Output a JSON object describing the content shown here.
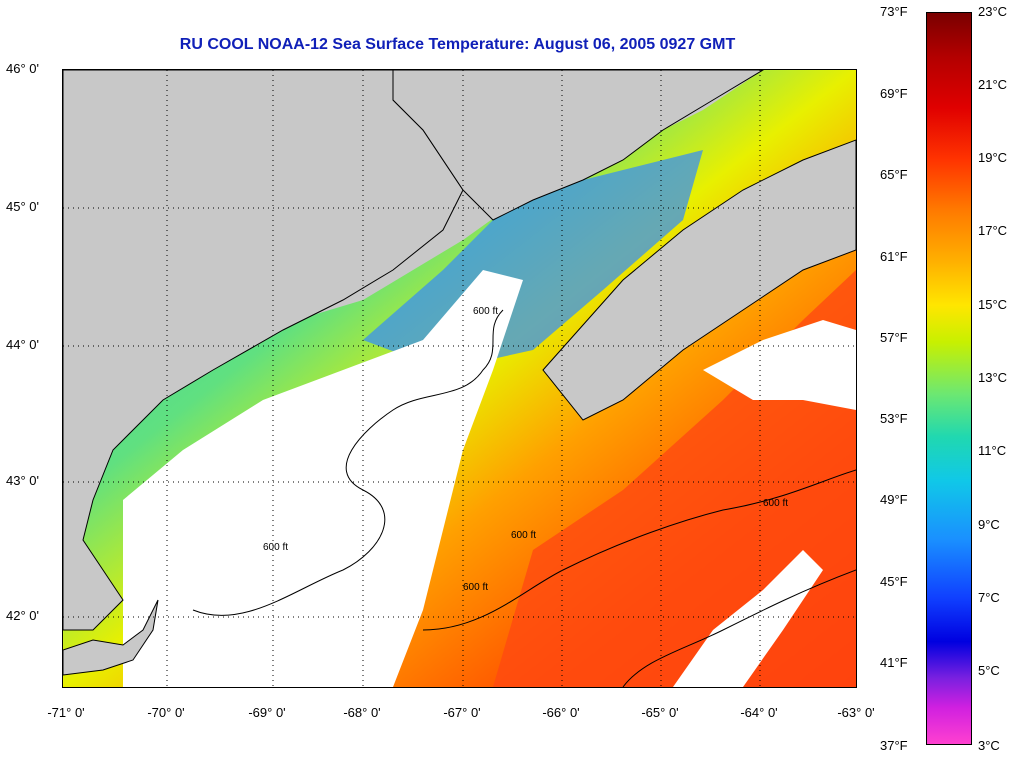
{
  "title": "RU COOL  NOAA-12  Sea Surface Temperature:  August 06, 2005 0927 GMT",
  "lat_labels": [
    "46° 0'",
    "45° 0'",
    "44° 0'",
    "43° 0'",
    "42° 0'"
  ],
  "lon_labels": [
    "-71° 0'",
    "-70° 0'",
    "-69° 0'",
    "-68° 0'",
    "-67° 0'",
    "-66° 0'",
    "-65° 0'",
    "-64° 0'",
    "-63° 0'"
  ],
  "contour_label": "600 ft",
  "colorbar": {
    "fahrenheit": [
      "73°F",
      "69°F",
      "65°F",
      "61°F",
      "57°F",
      "53°F",
      "49°F",
      "45°F",
      "41°F",
      "37°F"
    ],
    "celsius": [
      "23°C",
      "21°C",
      "19°C",
      "17°C",
      "15°C",
      "13°C",
      "11°C",
      "9°C",
      "7°C",
      "5°C",
      "3°C"
    ]
  },
  "colors": {
    "title": "#1020b8",
    "land": "#c8c8c8",
    "cloud": "#ffffff"
  }
}
